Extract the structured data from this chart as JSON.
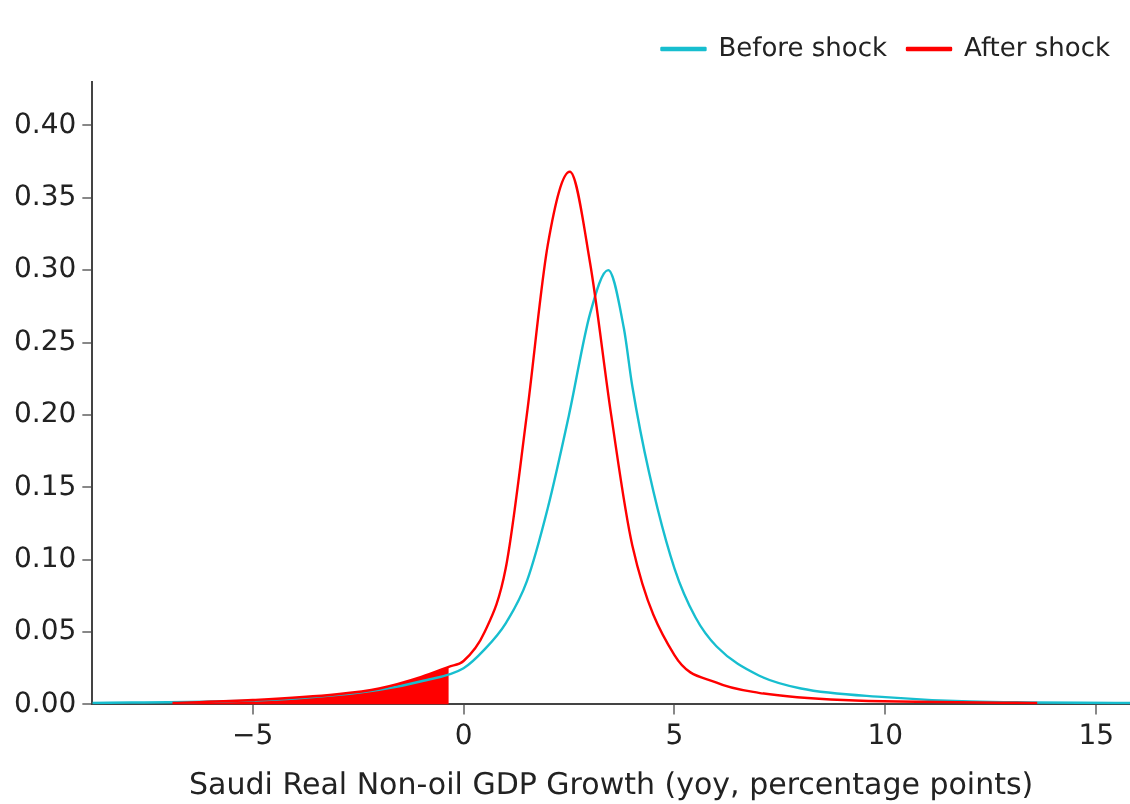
{
  "chart_data": {
    "type": "line",
    "xlabel": "Saudi Real Non-oil GDP Growth (yoy, percentage points)",
    "xlim": [
      -8.8,
      15.8
    ],
    "ylim": [
      0,
      0.43
    ],
    "xticks": [
      {
        "value": -5,
        "label": "−5"
      },
      0,
      5,
      10,
      15
    ],
    "yticks": [
      {
        "value": 0,
        "label": "0.00"
      },
      {
        "value": 0.05,
        "label": "0.05"
      },
      {
        "value": 0.1,
        "label": "0.10"
      },
      {
        "value": 0.15,
        "label": "0.15"
      },
      {
        "value": 0.2,
        "label": "0.20"
      },
      {
        "value": 0.25,
        "label": "0.25"
      },
      {
        "value": 0.3,
        "label": "0.30"
      },
      {
        "value": 0.35,
        "label": "0.35"
      },
      {
        "value": 0.4,
        "label": "0.40"
      }
    ],
    "grid": false,
    "legend": "top right",
    "marker": "none",
    "line_style": "solid",
    "series": [
      {
        "name": "Before shock",
        "color": "#17becf",
        "x": [
          -8.8,
          -6,
          -4,
          -2,
          -1,
          0,
          0.5,
          1,
          1.5,
          2,
          2.5,
          3,
          3.43,
          3.8,
          4,
          4.4,
          5,
          5.5,
          6,
          7,
          8,
          10,
          12,
          15.8
        ],
        "values": [
          0.001,
          0.002,
          0.004,
          0.01,
          0.016,
          0.025,
          0.038,
          0.056,
          0.085,
          0.136,
          0.2,
          0.27,
          0.3,
          0.26,
          0.22,
          0.16,
          0.094,
          0.06,
          0.04,
          0.02,
          0.011,
          0.005,
          0.002,
          0.001
        ]
      },
      {
        "name": "After shock",
        "color": "#ff0000",
        "x": [
          -6.9,
          -5,
          -3,
          -2,
          -1,
          -0.35,
          0,
          0.5,
          1,
          1.5,
          2,
          2.52,
          3,
          3.5,
          4,
          5,
          6,
          7,
          9,
          13.6
        ],
        "values": [
          0.001,
          0.003,
          0.007,
          0.011,
          0.019,
          0.026,
          0.03,
          0.05,
          0.094,
          0.2,
          0.318,
          0.368,
          0.305,
          0.2,
          0.11,
          0.034,
          0.015,
          0.008,
          0.003,
          0.001
        ]
      },
      {
        "type": "area",
        "color": "#ff0000",
        "x": [
          -6.9,
          -5,
          -3,
          -2,
          -1,
          -0.35
        ],
        "values": [
          0.001,
          0.003,
          0.007,
          0.011,
          0.019,
          0.026
        ]
      }
    ]
  }
}
